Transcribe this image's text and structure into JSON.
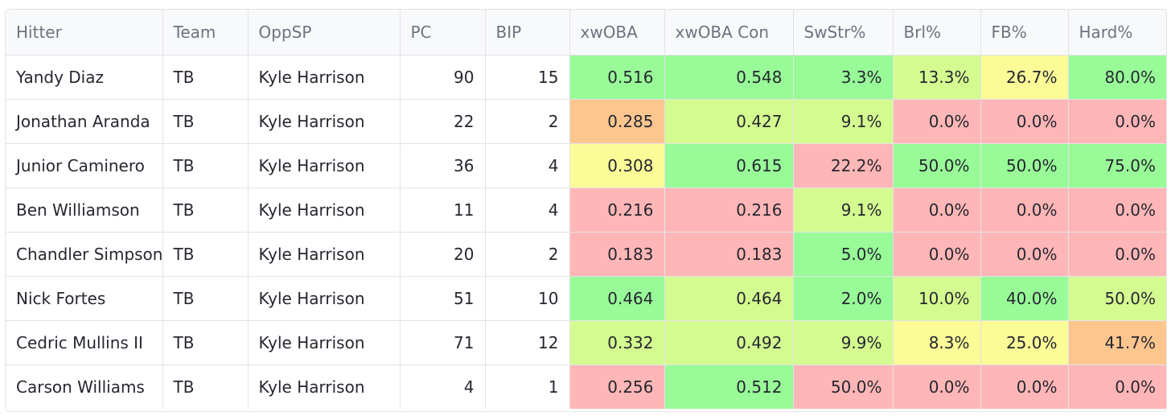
{
  "table": {
    "columns": [
      "Hitter",
      "Team",
      "OppSP",
      "PC",
      "BIP",
      "xwOBA",
      "xwOBA Con",
      "SwStr%",
      "Brl%",
      "FB%",
      "Hard%"
    ],
    "rows": [
      [
        "Yandy Diaz",
        "TB",
        "Kyle Harrison",
        "90",
        "15",
        "0.516",
        "0.548",
        "3.3%",
        "13.3%",
        "26.7%",
        "80.0%"
      ],
      [
        "Jonathan Aranda",
        "TB",
        "Kyle Harrison",
        "22",
        "2",
        "0.285",
        "0.427",
        "9.1%",
        "0.0%",
        "0.0%",
        "0.0%"
      ],
      [
        "Junior Caminero",
        "TB",
        "Kyle Harrison",
        "36",
        "4",
        "0.308",
        "0.615",
        "22.2%",
        "50.0%",
        "50.0%",
        "75.0%"
      ],
      [
        "Ben Williamson",
        "TB",
        "Kyle Harrison",
        "11",
        "4",
        "0.216",
        "0.216",
        "9.1%",
        "0.0%",
        "0.0%",
        "0.0%"
      ],
      [
        "Chandler Simpson",
        "TB",
        "Kyle Harrison",
        "20",
        "2",
        "0.183",
        "0.183",
        "5.0%",
        "0.0%",
        "0.0%",
        "0.0%"
      ],
      [
        "Nick Fortes",
        "TB",
        "Kyle Harrison",
        "51",
        "10",
        "0.464",
        "0.464",
        "2.0%",
        "10.0%",
        "40.0%",
        "50.0%"
      ],
      [
        "Cedric Mullins II",
        "TB",
        "Kyle Harrison",
        "71",
        "12",
        "0.332",
        "0.492",
        "9.9%",
        "8.3%",
        "25.0%",
        "41.7%"
      ],
      [
        "Carson Williams",
        "TB",
        "Kyle Harrison",
        "4",
        "1",
        "0.256",
        "0.512",
        "50.0%",
        "0.0%",
        "0.0%",
        "0.0%"
      ]
    ],
    "cell_colors": [
      [
        "",
        "",
        "",
        "",
        "",
        "#98fb98",
        "#98fb98",
        "#98fb98",
        "#d4fb90",
        "#fbfb98",
        "#98fb98"
      ],
      [
        "",
        "",
        "",
        "",
        "",
        "#fdc68f",
        "#d4fb90",
        "#d4fb90",
        "#ffb6b6",
        "#ffb6b6",
        "#ffb6b6"
      ],
      [
        "",
        "",
        "",
        "",
        "",
        "#fbfb98",
        "#98fb98",
        "#ffb6b6",
        "#98fb98",
        "#98fb98",
        "#98fb98"
      ],
      [
        "",
        "",
        "",
        "",
        "",
        "#ffb6b6",
        "#ffb6b6",
        "#d4fb90",
        "#ffb6b6",
        "#ffb6b6",
        "#ffb6b6"
      ],
      [
        "",
        "",
        "",
        "",
        "",
        "#ffb6b6",
        "#ffb6b6",
        "#98fb98",
        "#ffb6b6",
        "#ffb6b6",
        "#ffb6b6"
      ],
      [
        "",
        "",
        "",
        "",
        "",
        "#98fb98",
        "#d4fb90",
        "#98fb98",
        "#d4fb90",
        "#98fb98",
        "#d4fb90"
      ],
      [
        "",
        "",
        "",
        "",
        "",
        "#d4fb90",
        "#d4fb90",
        "#d4fb90",
        "#fbfb98",
        "#fbfb98",
        "#fdc68f"
      ],
      [
        "",
        "",
        "",
        "",
        "",
        "#ffb6b6",
        "#98fb98",
        "#ffb6b6",
        "#ffb6b6",
        "#ffb6b6",
        "#ffb6b6"
      ]
    ]
  }
}
